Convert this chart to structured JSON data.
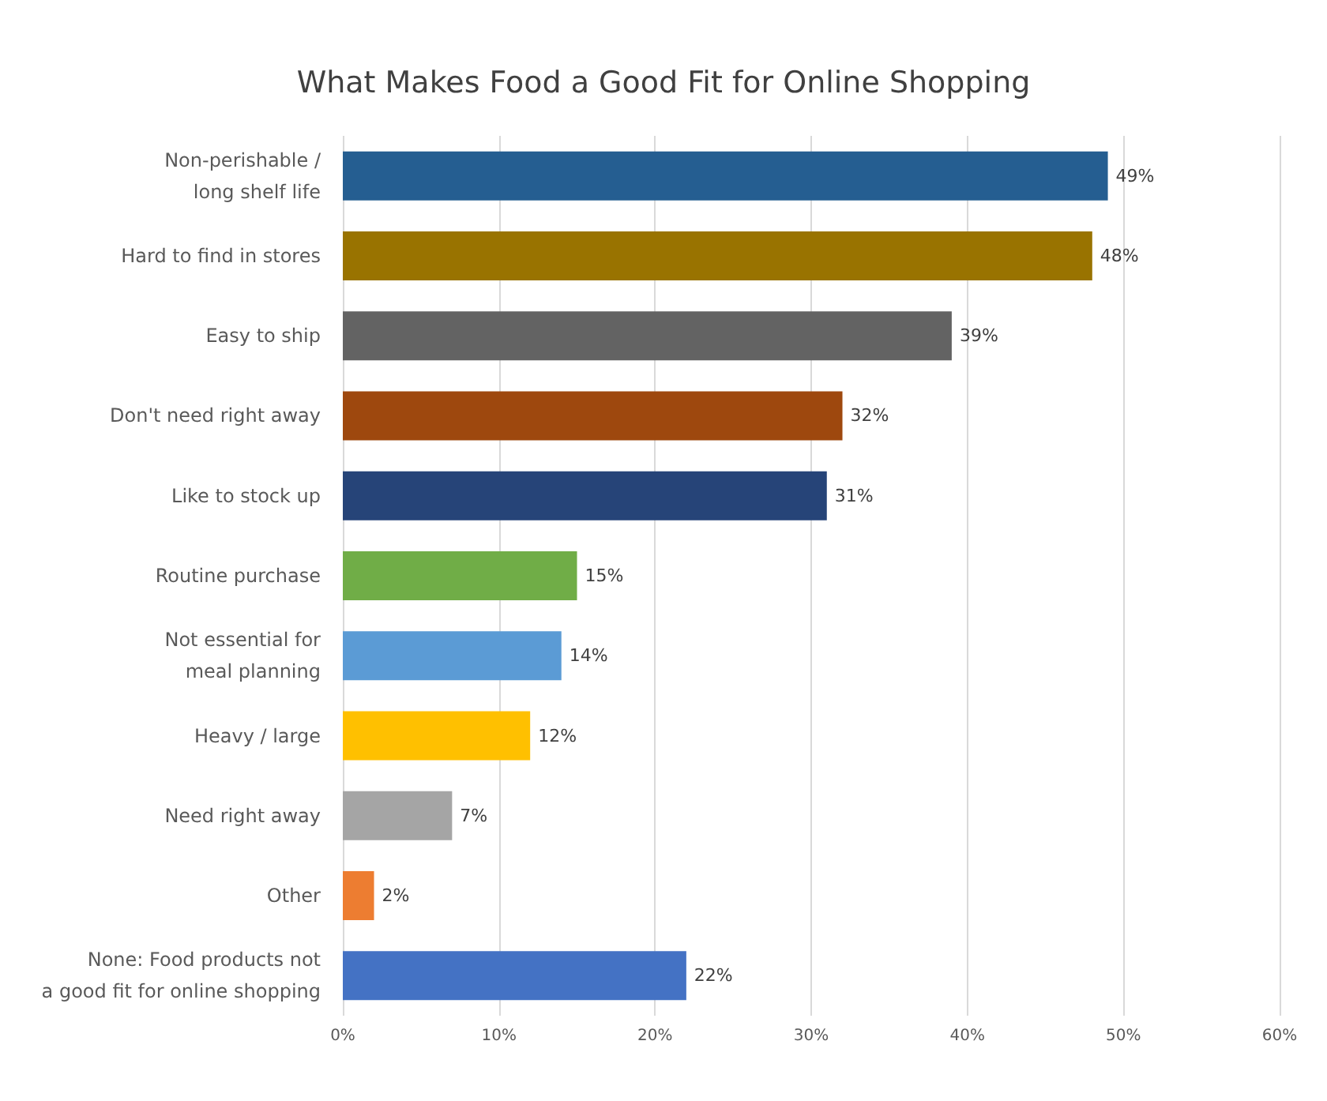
{
  "chart_data": {
    "type": "bar",
    "orientation": "horizontal",
    "title": "What Makes Food a Good Fit for Online Shopping",
    "categories": [
      "Non-perishable /\nlong shelf life",
      "Hard to find in stores",
      "Easy to ship",
      "Don't need right away",
      "Like to stock up",
      "Routine purchase",
      "Not essential for\nmeal planning",
      "Heavy / large",
      "Need right away",
      "Other",
      "None: Food products not\na good fit for online shopping"
    ],
    "values": [
      49,
      48,
      39,
      32,
      31,
      15,
      14,
      12,
      7,
      2,
      22
    ],
    "colors": [
      "#255e91",
      "#997300",
      "#636363",
      "#9e480e",
      "#264478",
      "#70ad47",
      "#5b9bd5",
      "#ffc000",
      "#a5a5a5",
      "#ed7d31",
      "#4472c4"
    ],
    "value_labels": [
      "49%",
      "48%",
      "39%",
      "32%",
      "31%",
      "15%",
      "14%",
      "12%",
      "7%",
      "2%",
      "22%"
    ],
    "xlim": [
      0,
      60
    ],
    "xticks": [
      {
        "value": 0,
        "label": "0%"
      },
      {
        "value": 10,
        "label": "10%"
      },
      {
        "value": 20,
        "label": "20%"
      },
      {
        "value": 30,
        "label": "30%"
      },
      {
        "value": 40,
        "label": "40%"
      },
      {
        "value": 50,
        "label": "50%"
      },
      {
        "value": 60,
        "label": "60%"
      }
    ],
    "grid": "x"
  }
}
